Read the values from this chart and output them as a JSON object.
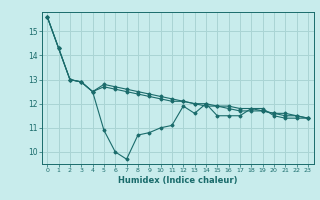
{
  "xlabel": "Humidex (Indice chaleur)",
  "ylabel": "",
  "background_color": "#c8ecec",
  "grid_color": "#aad4d4",
  "line_color": "#1a6b6b",
  "xlim": [
    -0.5,
    23.5
  ],
  "ylim": [
    9.5,
    15.8
  ],
  "yticks": [
    10,
    11,
    12,
    13,
    14,
    15
  ],
  "xticks": [
    0,
    1,
    2,
    3,
    4,
    5,
    6,
    7,
    8,
    9,
    10,
    11,
    12,
    13,
    14,
    15,
    16,
    17,
    18,
    19,
    20,
    21,
    22,
    23
  ],
  "series": [
    [
      15.6,
      14.3,
      13.0,
      12.9,
      12.5,
      10.9,
      10.0,
      9.7,
      10.7,
      10.8,
      11.0,
      11.1,
      11.9,
      11.6,
      12.0,
      11.5,
      11.5,
      11.5,
      11.8,
      11.8,
      11.5,
      11.4,
      11.4,
      11.4
    ],
    [
      15.6,
      14.3,
      13.0,
      12.9,
      12.5,
      12.8,
      12.7,
      12.6,
      12.5,
      12.4,
      12.3,
      12.2,
      12.1,
      12.0,
      12.0,
      11.9,
      11.9,
      11.8,
      11.8,
      11.7,
      11.6,
      11.6,
      11.5,
      11.4
    ],
    [
      15.6,
      14.3,
      13.0,
      12.9,
      12.5,
      12.7,
      12.6,
      12.5,
      12.4,
      12.3,
      12.2,
      12.1,
      12.1,
      12.0,
      11.9,
      11.9,
      11.8,
      11.7,
      11.7,
      11.7,
      11.6,
      11.5,
      11.5,
      11.4
    ]
  ]
}
